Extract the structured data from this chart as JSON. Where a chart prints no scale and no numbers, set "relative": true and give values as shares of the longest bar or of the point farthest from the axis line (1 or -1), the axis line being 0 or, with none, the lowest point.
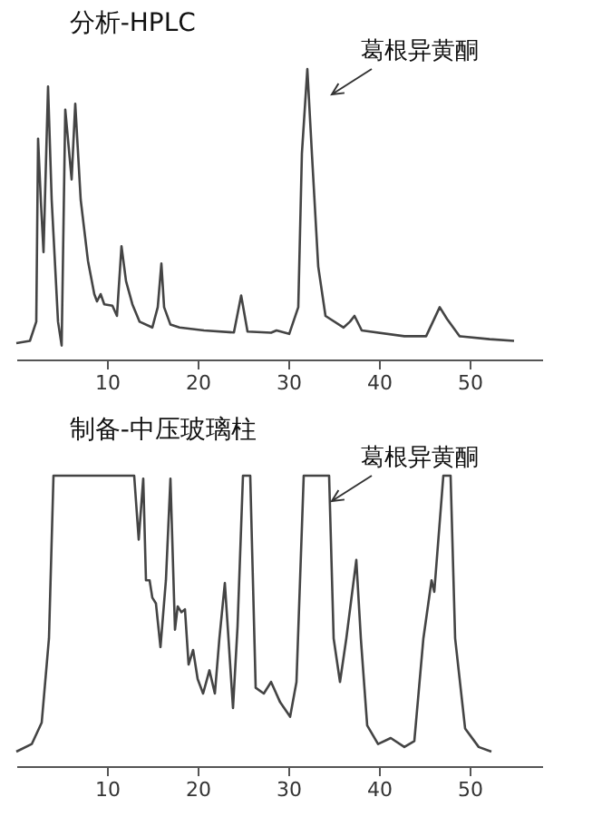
{
  "chart_data": [
    {
      "type": "line",
      "title": "分析-HPLC",
      "relative": true,
      "color": "#444444",
      "xlim": [
        0,
        58
      ],
      "xticks": [
        10,
        20,
        30,
        40,
        50
      ],
      "annotations": [
        "葛根异黄酮"
      ],
      "x": [
        0,
        1.5,
        2.2,
        2.4,
        2.7,
        3.0,
        3.5,
        3.9,
        4.6,
        5.0,
        5.4,
        6.1,
        6.5,
        7.1,
        7.9,
        8.6,
        8.9,
        9.3,
        9.7,
        10.6,
        11.1,
        11.6,
        12.1,
        12.8,
        13.6,
        15.0,
        15.6,
        16.0,
        16.3,
        17.0,
        18.0,
        20.7,
        24.0,
        24.8,
        25.5,
        28.1,
        28.7,
        30.1,
        31.1,
        31.5,
        32.1,
        32.6,
        33.3,
        34.1,
        36.1,
        36.8,
        37.3,
        38.1,
        42.8,
        45.2,
        45.8,
        46.7,
        47.5,
        48.9,
        52.2,
        54.9
      ],
      "values": [
        0.056,
        0.064,
        0.13,
        0.76,
        0.55,
        0.37,
        0.94,
        0.55,
        0.13,
        0.048,
        0.86,
        0.62,
        0.88,
        0.55,
        0.34,
        0.225,
        0.2,
        0.225,
        0.19,
        0.185,
        0.15,
        0.39,
        0.27,
        0.19,
        0.13,
        0.11,
        0.18,
        0.33,
        0.18,
        0.12,
        0.11,
        0.1,
        0.093,
        0.22,
        0.096,
        0.092,
        0.1,
        0.088,
        0.18,
        0.71,
        1,
        0.71,
        0.32,
        0.15,
        0.11,
        0.13,
        0.15,
        0.1,
        0.08,
        0.08,
        0.12,
        0.18,
        0.14,
        0.08,
        0.07,
        0.064
      ]
    },
    {
      "type": "line",
      "title": "制备-中压玻璃柱",
      "relative": true,
      "color": "#444444",
      "xlim": [
        0,
        58
      ],
      "xticks": [
        10,
        20,
        30,
        40,
        50
      ],
      "annotations": [
        "葛根异黄酮"
      ],
      "x": [
        0,
        1.7,
        2.8,
        3.6,
        4.1,
        13.0,
        13.5,
        14.0,
        14.3,
        14.7,
        15.0,
        15.4,
        15.9,
        16.5,
        17.0,
        17.5,
        17.8,
        18.2,
        18.6,
        19.0,
        19.5,
        20.0,
        20.6,
        21.3,
        21.9,
        22.4,
        23.0,
        23.4,
        23.9,
        24.4,
        25.0,
        25.8,
        26.4,
        27.3,
        28.1,
        29.1,
        30.2,
        30.9,
        31.7,
        34.5,
        35.0,
        35.7,
        36.4,
        37.5,
        38.0,
        38.7,
        39.9,
        41.3,
        42.8,
        43.9,
        44.9,
        45.8,
        46.1,
        47.1,
        47.9,
        48.4,
        49.5,
        51.0,
        52.4
      ],
      "values": [
        0.05,
        0.076,
        0.15,
        0.44,
        1,
        1,
        0.78,
        0.99,
        0.64,
        0.64,
        0.58,
        0.56,
        0.41,
        0.64,
        0.99,
        0.47,
        0.55,
        0.53,
        0.54,
        0.35,
        0.4,
        0.3,
        0.25,
        0.33,
        0.25,
        0.44,
        0.63,
        0.44,
        0.2,
        0.48,
        1,
        1,
        0.27,
        0.25,
        0.29,
        0.22,
        0.17,
        0.29,
        1,
        1,
        0.44,
        0.29,
        0.44,
        0.71,
        0.44,
        0.14,
        0.076,
        0.097,
        0.066,
        0.086,
        0.44,
        0.64,
        0.6,
        1,
        1,
        0.44,
        0.13,
        0.066,
        0.05
      ]
    }
  ]
}
